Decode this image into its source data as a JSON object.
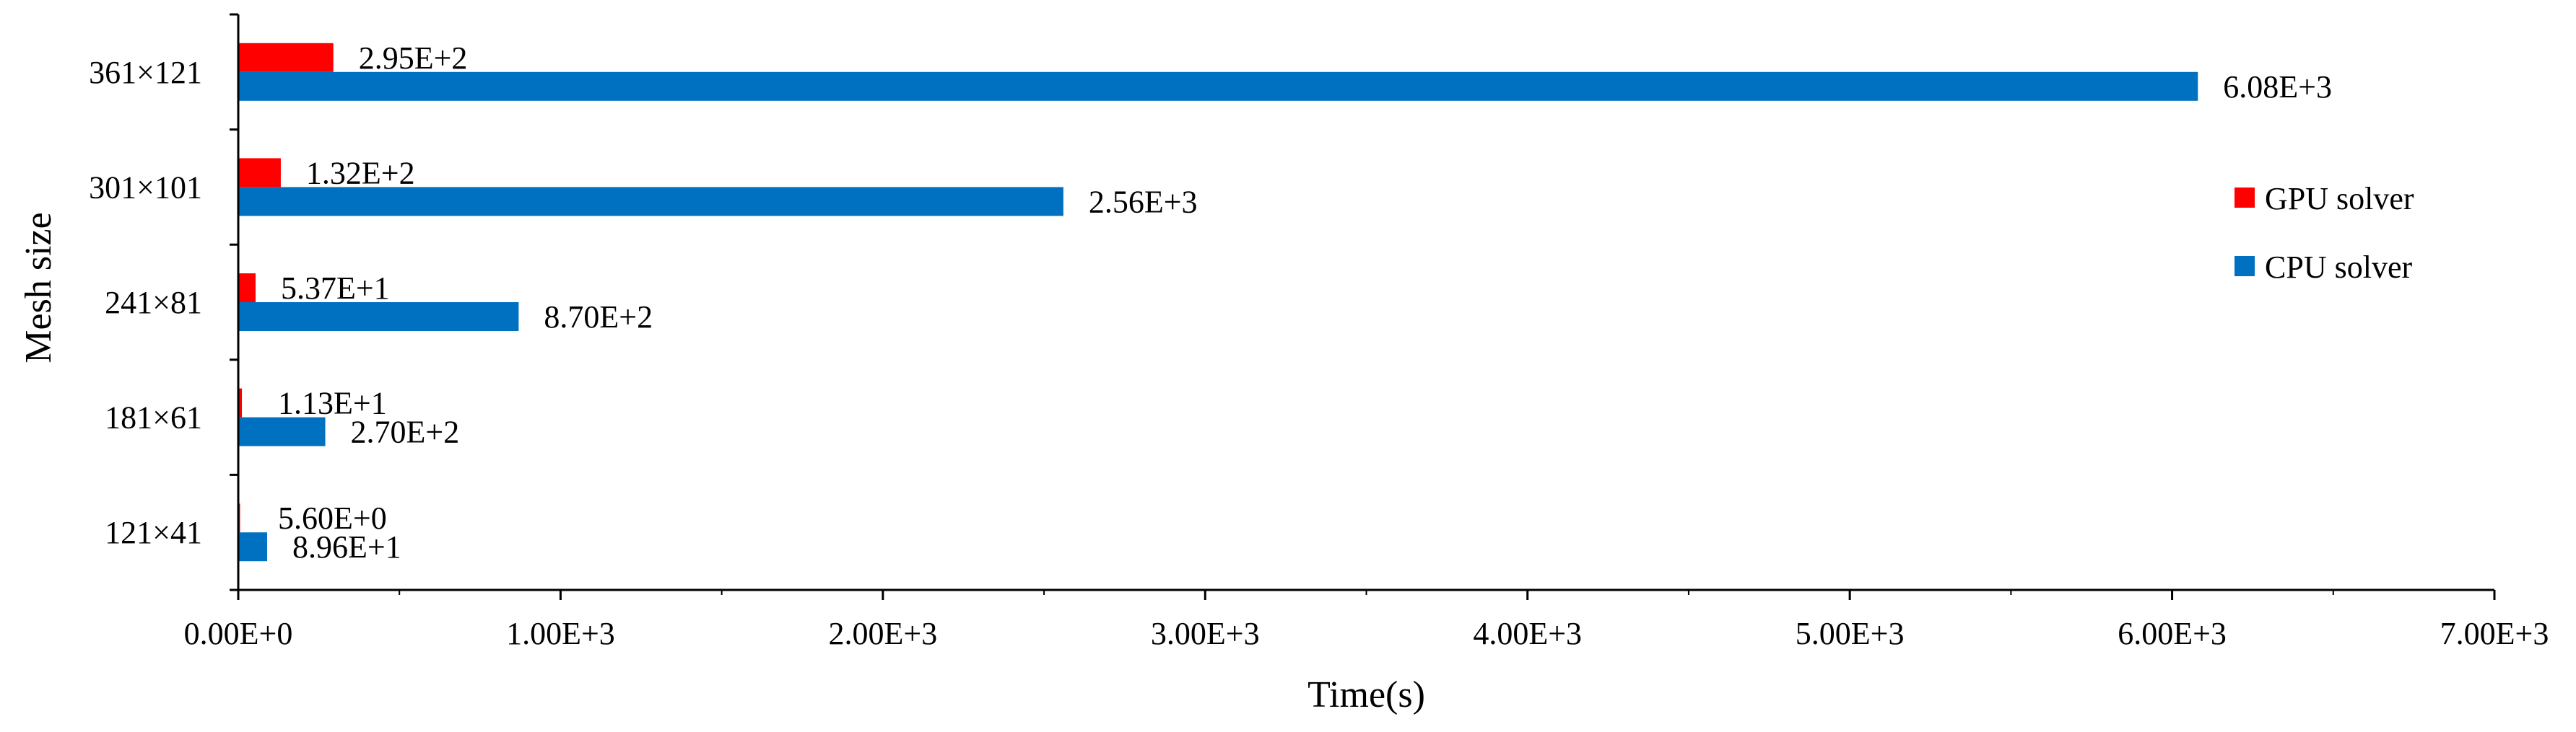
{
  "chart_data": {
    "type": "bar",
    "orientation": "horizontal",
    "title": "",
    "xlabel": "Time(s)",
    "ylabel": "Mesh size",
    "xlim": [
      0,
      7000
    ],
    "x_ticks": [
      0,
      1000,
      2000,
      3000,
      4000,
      5000,
      6000,
      7000
    ],
    "x_tick_labels": [
      "0.00E+0",
      "1.00E+3",
      "2.00E+3",
      "3.00E+3",
      "4.00E+3",
      "5.00E+3",
      "6.00E+3",
      "7.00E+3"
    ],
    "categories": [
      "361×121",
      "301×101",
      "241×81",
      "181×61",
      "121×41"
    ],
    "grid": false,
    "legend_position": "right",
    "series": [
      {
        "name": "GPU solver",
        "color": "#ff0000",
        "values": [
          295,
          132,
          53.7,
          11.3,
          5.6
        ],
        "labels": [
          "2.95E+2",
          "1.32E+2",
          "5.37E+1",
          "1.13E+1",
          "5.60E+0"
        ]
      },
      {
        "name": "CPU solver",
        "color": "#0070c0",
        "values": [
          6080,
          2560,
          870,
          270,
          89.6
        ],
        "labels": [
          "6.08E+3",
          "2.56E+3",
          "8.70E+2",
          "2.70E+2",
          "8.96E+1"
        ]
      }
    ]
  }
}
